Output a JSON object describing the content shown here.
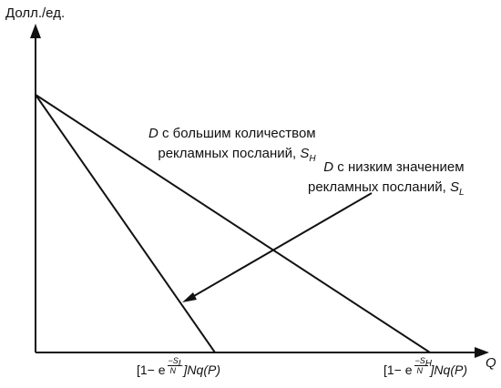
{
  "axes": {
    "y_label": "Долл./ед.",
    "x_label": "Q"
  },
  "annotation_high": {
    "line1_prefix": "D",
    "line1_rest": " с большим количеством",
    "line2_text": "рекламных посланий, ",
    "line2_symbol": "S",
    "line2_sub": "H"
  },
  "annotation_low": {
    "line1_prefix": "D",
    "line1_rest": " с низким значением",
    "line2_text": "рекламных посланий, ",
    "line2_symbol": "S",
    "line2_sub": "L"
  },
  "intercept_low": {
    "open": "[1− e",
    "exp_num_symbol": "−S",
    "exp_num_sub": "L",
    "exp_den": "N",
    "close": "]Nq(P)"
  },
  "intercept_high": {
    "open": "[1− e",
    "exp_num_symbol": "−S",
    "exp_num_sub": "H",
    "exp_den": "N",
    "close": "]Nq(P)"
  },
  "colors": {
    "ink": "#111111",
    "background": "#ffffff"
  }
}
